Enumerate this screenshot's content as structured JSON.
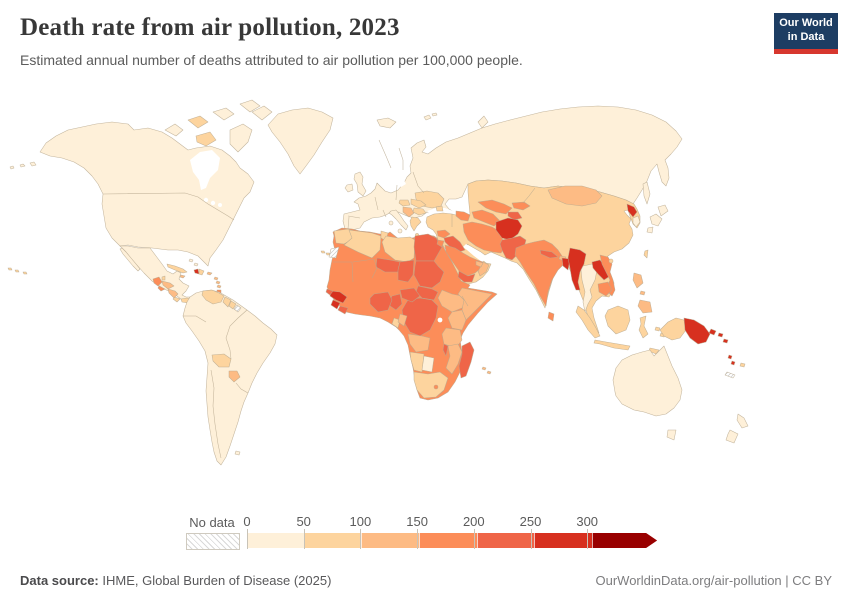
{
  "header": {
    "title": "Death rate from air pollution, 2023",
    "subtitle": "Estimated annual number of deaths attributed to air pollution per 100,000 people."
  },
  "logo": {
    "line1": "Our World",
    "line2": "in Data"
  },
  "legend": {
    "no_data_label": "No data",
    "tick_labels": [
      "0",
      "50",
      "100",
      "150",
      "200",
      "250",
      "300"
    ]
  },
  "footer": {
    "source_label": "Data source:",
    "source_value": " IHME, Global Burden of Disease (2025)",
    "attribution": "OurWorldinData.org/air-pollution | CC BY"
  },
  "chart_data": {
    "type": "choropleth",
    "title": "Death rate from air pollution, 2023",
    "unit": "deaths per 100,000 people",
    "year": 2023,
    "legend_bins": [
      {
        "label": "0-50",
        "color": "#fef0d9"
      },
      {
        "label": "50-100",
        "color": "#fdd49e"
      },
      {
        "label": "100-150",
        "color": "#fdbb84"
      },
      {
        "label": "150-200",
        "color": "#fc8d59"
      },
      {
        "label": "200-250",
        "color": "#ef6548"
      },
      {
        "label": "250-300",
        "color": "#d7301f"
      },
      {
        "label": "300+",
        "color": "#990000"
      },
      {
        "label": "No data",
        "color": "hatch"
      }
    ],
    "region_colors": {
      "canada-usa": "#fef0d9",
      "alaska-isles": "#fef0d9",
      "arctic-isle-1": "#fef0d9",
      "arctic-isle-2": "#fdd49e",
      "arctic-isle-3": "#fef0d9",
      "arctic-isle-4": "#fef0d9",
      "baffin": "#fef0d9",
      "victoria-isle": "#fdd49e",
      "ellesmere": "#fef0d9",
      "greenland": "#fef0d9",
      "iceland": "#fef0d9",
      "hawaii": "#fdd49e",
      "mexico": "#fef0d9",
      "baja": "#fef0d9",
      "guatemala": "#fc8d59",
      "belize": "#fdd49e",
      "honduras": "#fdbb84",
      "el-salvador": "#fc8d59",
      "nicaragua": "#fdbb84",
      "costa-rica": "#fdd49e",
      "panama": "#fdd49e",
      "cuba": "#fdd49e",
      "jamaica": "#fdbb84",
      "haiti": "#d7301f",
      "dominican-republic": "#fdd49e",
      "puerto-rico": "#fdbb84",
      "bahamas": "#fef0d9",
      "lesser-antilles": "#fdbb84",
      "trinidad": "#fc8d59",
      "south-america": "#fef0d9",
      "venezuela": "#fdd49e",
      "guyana": "#fdd49e",
      "suriname": "#fdd49e",
      "french-guiana": "hatch",
      "bolivia": "#fdd49e",
      "paraguay": "#fdbb84",
      "falklands": "#fef0d9",
      "europe-russia": "#fef0d9",
      "uk": "#fef0d9",
      "ireland": "#fef0d9",
      "italy": "#fef0d9",
      "sicily": "#fef0d9",
      "sardinia": "#fef0d9",
      "greece": "#fdd49e",
      "crete": "#fdd49e",
      "ukraine": "#fdd49e",
      "crimea": "#fdd49e",
      "romania": "#fdd49e",
      "hungary": "#fdd49e",
      "serbia-bosnia": "#fdbb84",
      "bulgaria": "#fdd49e",
      "novaya-zemlya": "#fef0d9",
      "svalbard": "#fef0d9",
      "sakhalin": "#fef0d9",
      "africa-base": "#fc8d59",
      "morocco": "#fdd49e",
      "western-sahara": "hatch",
      "algeria": "#fdd49e",
      "tunisia": "#fdd49e",
      "libya": "#fdd49e",
      "egypt": "#ef6548",
      "niger": "#ef6548",
      "chad": "#ef6548",
      "sudan": "#ef6548",
      "south-sudan": "#ef6548",
      "ethiopia": "#fdbb84",
      "somalia": "#fdbb84",
      "kenya": "#fdbb84",
      "tanzania": "#fdbb84",
      "drc": "#ef6548",
      "car": "#ef6548",
      "cameroon": "#ef6548",
      "nigeria": "#ef6548",
      "liberia": "#ef6548",
      "sierra-leone": "#d7301f",
      "guinea": "#d7301f",
      "guinea-bissau": "#ef6548",
      "gabon": "#fdd49e",
      "congo": "#fdbb84",
      "angola": "#fdbb84",
      "malawi": "#ef6548",
      "mozambique": "#fdbb84",
      "namibia": "#fdd49e",
      "botswana": "#fef0d9",
      "south-africa": "#fdd49e",
      "lesotho": "#fc8d59",
      "madagascar": "#ef6548",
      "canary-isles": "#fdd49e",
      "mauritius": "#fdbb84",
      "asia-base": "#fdd49e",
      "caucasus": "#fc8d59",
      "syria": "#fc8d59",
      "iraq": "#ef6548",
      "jordan": "#fc8d59",
      "saudi-arabia": "#fc8d59",
      "yemen": "#ef6548",
      "oman": "#fdbb84",
      "uae": "#fdbb84",
      "iran": "#fc8d59",
      "turkmenistan": "#fc8d59",
      "uzbekistan": "#fc8d59",
      "kyrgyzstan": "#fc8d59",
      "tajikistan": "#ef6548",
      "afghanistan": "#d7301f",
      "pakistan": "#ef6548",
      "india": "#fc8d59",
      "nepal": "#ef6548",
      "bhutan": "#fdbb84",
      "bangladesh": "#d7301f",
      "sri-lanka": "#fc8d59",
      "myanmar": "#d7301f",
      "thailand": "#fef0d9",
      "laos": "#d7301f",
      "vietnam": "#fc8d59",
      "cambodia": "#fc8d59",
      "mongolia": "#fdbb84",
      "north-korea": "#d7301f",
      "south-korea": "#fef0d9",
      "japan": "#fef0d9",
      "taiwan": "#fdd49e",
      "hainan": "#fdd49e",
      "philippines": "#fdbb84",
      "sumatra": "#fdd49e",
      "java": "#fdd49e",
      "borneo": "#fdd49e",
      "sulawesi": "#fdd49e",
      "moluccas": "#fdd49e",
      "timor": "#fdd49e",
      "new-guinea-west": "#fdd49e",
      "papua-new-guinea": "#d7301f",
      "solomon-islands": "#d7301f",
      "vanuatu": "#d7301f",
      "fiji": "#fdd49e",
      "new-caledonia": "hatch",
      "australia": "#fef0d9",
      "tasmania": "#fef0d9",
      "new-zealand": "#fef0d9"
    }
  }
}
